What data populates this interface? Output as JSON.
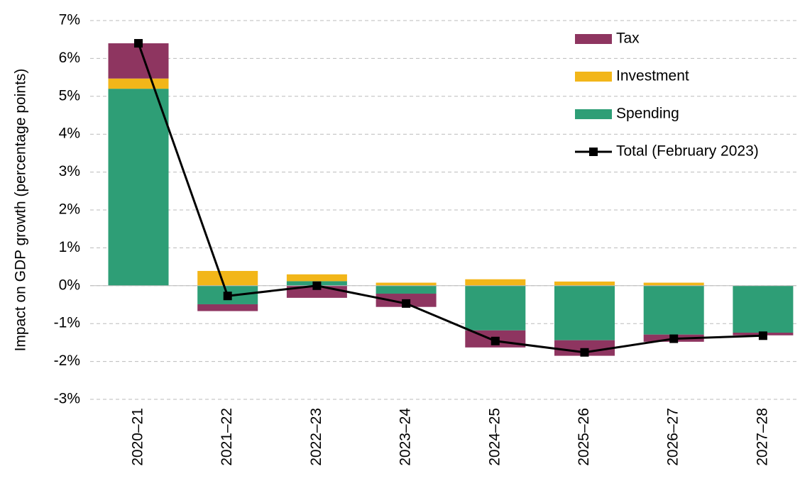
{
  "chart_data": {
    "type": "stacked_bar_line",
    "y_label": "Impact on GDP growth (percentage points)",
    "categories": [
      "2020–21",
      "2021–22",
      "2022–23",
      "2023–24",
      "2024–25",
      "2025–26",
      "2026–27",
      "2027–28"
    ],
    "series": [
      {
        "name": "Tax",
        "color": "#8e3560",
        "kind": "bar",
        "values": [
          0.93,
          -0.18,
          -0.32,
          -0.35,
          -0.45,
          -0.41,
          -0.19,
          -0.07
        ]
      },
      {
        "name": "Investment",
        "color": "#f2b619",
        "kind": "bar",
        "values": [
          0.27,
          0.39,
          0.18,
          0.08,
          0.17,
          0.11,
          0.08,
          0.0
        ]
      },
      {
        "name": "Spending",
        "color": "#2e9e76",
        "kind": "bar",
        "values": [
          5.2,
          -0.49,
          0.12,
          -0.21,
          -1.18,
          -1.44,
          -1.29,
          -1.24
        ]
      },
      {
        "name": "Total (February 2023)",
        "color": "#000000",
        "kind": "line",
        "values": [
          6.4,
          -0.27,
          0.0,
          -0.47,
          -1.46,
          -1.76,
          -1.4,
          -1.32
        ]
      }
    ],
    "ylim": [
      -3,
      7
    ],
    "yticks": [
      {
        "value": -3,
        "label": "-3%"
      },
      {
        "value": -2,
        "label": "-2%"
      },
      {
        "value": -1,
        "label": "-1%"
      },
      {
        "value": 0,
        "label": "0%"
      },
      {
        "value": 1,
        "label": "1%"
      },
      {
        "value": 2,
        "label": "2%"
      },
      {
        "value": 3,
        "label": "3%"
      },
      {
        "value": 4,
        "label": "4%"
      },
      {
        "value": 5,
        "label": "5%"
      },
      {
        "value": 6,
        "label": "6%"
      },
      {
        "value": 7,
        "label": "7%"
      }
    ],
    "grid": true,
    "legend": "top-right"
  }
}
